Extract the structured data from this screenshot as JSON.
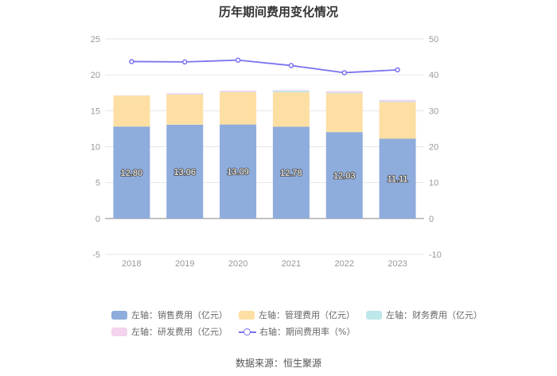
{
  "chart_data": {
    "type": "bar",
    "title": "历年期间费用变化情况",
    "categories": [
      "2018",
      "2019",
      "2020",
      "2021",
      "2022",
      "2023"
    ],
    "left_axis": {
      "ylim": [
        -5,
        25
      ],
      "ticks": [
        "25",
        "20",
        "15",
        "10",
        "5",
        "0",
        "-5"
      ],
      "tick_values": [
        25,
        20,
        15,
        10,
        5,
        0,
        -5
      ]
    },
    "right_axis": {
      "ylim": [
        -10,
        50
      ],
      "ticks": [
        "50",
        "40",
        "30",
        "20",
        "10",
        "0",
        "-10"
      ],
      "tick_values": [
        50,
        40,
        30,
        20,
        10,
        0,
        -10
      ]
    },
    "series": [
      {
        "name": "左轴：销售费用（亿元）",
        "type": "bar",
        "stack": "left",
        "color": "#8eacdc",
        "values": [
          12.8,
          13.06,
          13.09,
          12.78,
          12.03,
          11.11
        ],
        "labels": [
          "12.80",
          "13.06",
          "13.09",
          "12.78",
          "12.03",
          "11.11"
        ]
      },
      {
        "name": "左轴：管理费用（亿元）",
        "type": "bar",
        "stack": "left",
        "color": "#fddfa4",
        "values": [
          4.3,
          4.2,
          4.5,
          4.8,
          5.4,
          5.1
        ]
      },
      {
        "name": "左轴：财务费用（亿元）",
        "type": "bar",
        "stack": "left",
        "color": "#bde7ea",
        "values": [
          0.02,
          0.05,
          0.05,
          0.2,
          0.1,
          0.1
        ]
      },
      {
        "name": "左轴：研发费用（亿元）",
        "type": "bar",
        "stack": "left",
        "color": "#f3d3ee",
        "values": [
          0.03,
          0.15,
          0.15,
          0.1,
          0.2,
          0.2
        ]
      },
      {
        "name": "右轴：期间费用率（%）",
        "type": "line",
        "axis": "right",
        "color": "#7b72f0",
        "values": [
          43.7,
          43.6,
          44.1,
          42.6,
          40.6,
          41.4
        ]
      }
    ]
  },
  "source": "数据来源：恒生聚源"
}
